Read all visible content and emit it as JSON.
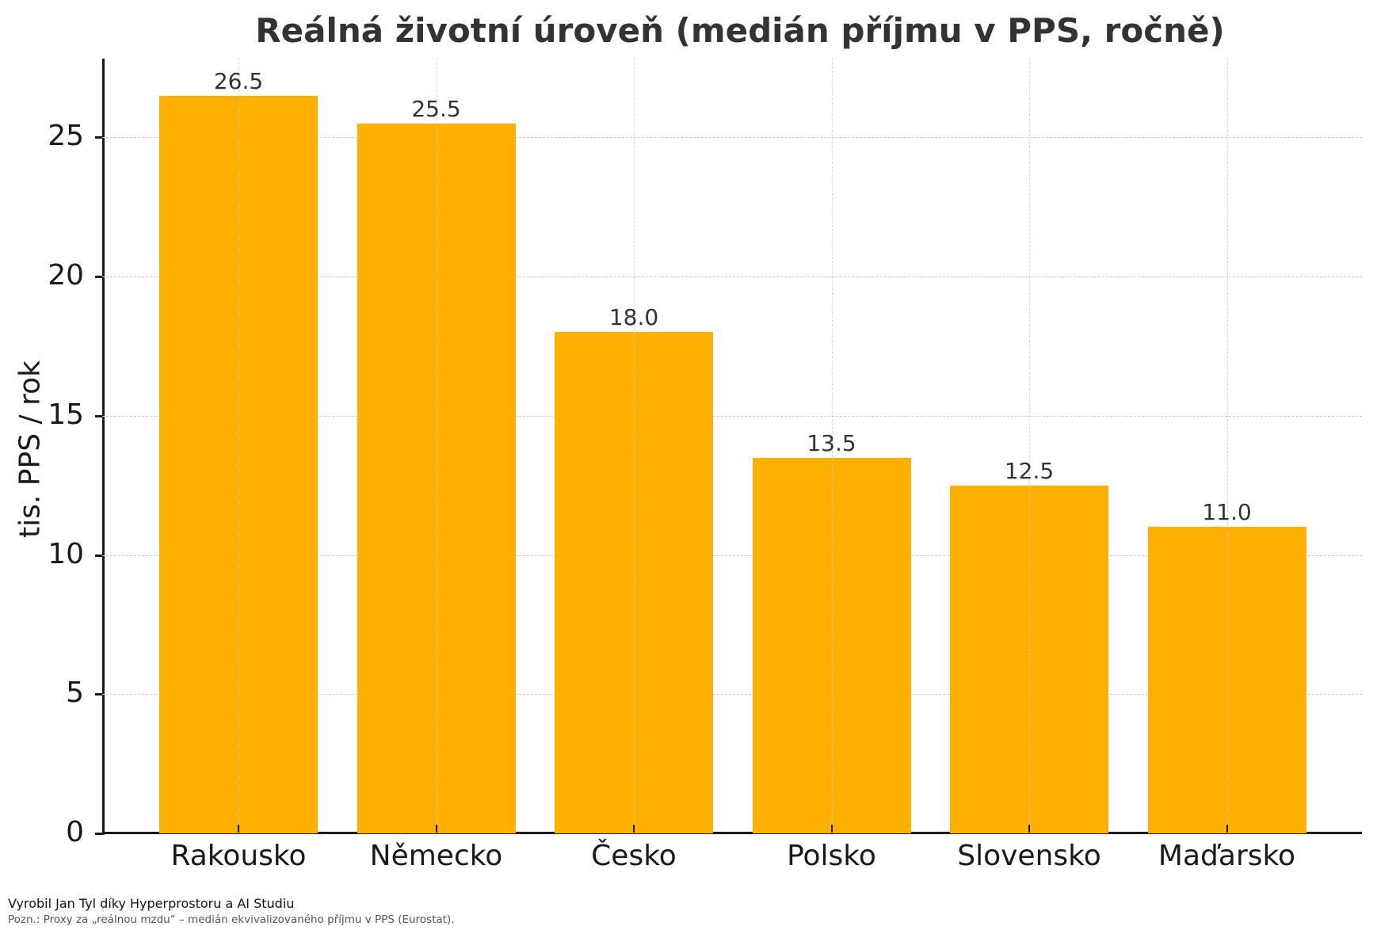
{
  "chart_data": {
    "type": "bar",
    "title": "Reálná životní úroveň (medián příjmu v PPS, ročně)",
    "xlabel": "",
    "ylabel": "tis. PPS / rok",
    "categories": [
      "Rakousko",
      "Německo",
      "Česko",
      "Polsko",
      "Slovensko",
      "Maďarsko"
    ],
    "values": [
      26.5,
      25.5,
      18.0,
      13.5,
      12.5,
      11.0
    ],
    "value_labels": [
      "26.5",
      "25.5",
      "18.0",
      "13.5",
      "12.5",
      "11.0"
    ],
    "yticks": [
      0,
      5,
      10,
      15,
      20,
      25
    ],
    "ylim": [
      0,
      27.83
    ],
    "grid": true,
    "grid_style": "dashed",
    "legend": null,
    "bar_color": "#FFB000"
  },
  "footer": {
    "credit": "Vyrobil Jan Tyl díky Hyperprostoru a AI Studiu",
    "note": "Pozn.: Proxy za „reálnou mzdu“ – medián ekvivalizovaného příjmu v PPS (Eurostat)."
  }
}
